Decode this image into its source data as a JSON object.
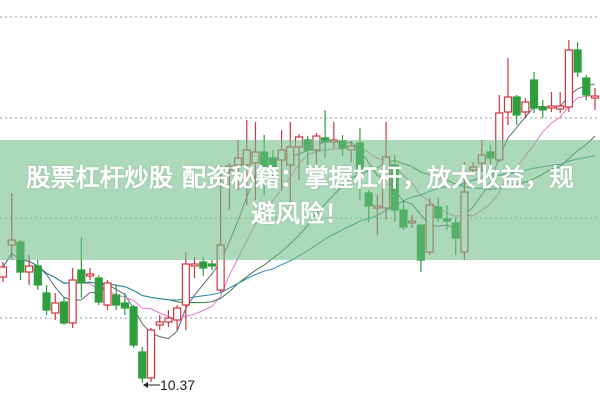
{
  "banner": {
    "title_line1": "股票杠杆炒股 配资秘籍：掌握杠杆，放大收益，规",
    "title_line2": "避风险！",
    "color": "#70be87"
  },
  "chart_data": {
    "type": "candlestick",
    "title": "",
    "xlabel": "",
    "ylabel": "",
    "ylim": [
      10.19,
      14.2
    ],
    "grid": true,
    "gridlines": [
      14.03,
      13.02,
      12.02,
      11.02
    ],
    "annotations": [
      {
        "text": "10.37",
        "target": "lowest low",
        "value": 10.37
      }
    ],
    "up_color": "#d0353f",
    "down_color": "#2e9e3e",
    "moving_averages": [
      {
        "window": 5,
        "color": "#5a6a7a"
      },
      {
        "window": 10,
        "color": "#e07ac8"
      },
      {
        "window": 20,
        "color": "#3d7a45"
      },
      {
        "window": 30,
        "color": "#2a8aa8"
      }
    ],
    "candles_ohlc": [
      [
        11.43,
        11.58,
        11.38,
        11.53
      ],
      [
        11.75,
        12.27,
        11.6,
        11.8
      ],
      [
        11.78,
        11.8,
        11.4,
        11.48
      ],
      [
        11.48,
        11.65,
        11.35,
        11.54
      ],
      [
        11.54,
        11.6,
        11.3,
        11.35
      ],
      [
        11.27,
        11.35,
        11.05,
        11.1
      ],
      [
        11.07,
        11.27,
        11.0,
        11.17
      ],
      [
        11.18,
        11.22,
        10.95,
        10.97
      ],
      [
        10.97,
        11.52,
        10.92,
        11.4
      ],
      [
        11.5,
        11.83,
        11.22,
        11.37
      ],
      [
        11.44,
        11.52,
        11.4,
        11.46
      ],
      [
        11.42,
        11.45,
        11.15,
        11.18
      ],
      [
        11.15,
        11.4,
        11.1,
        11.37
      ],
      [
        11.25,
        11.35,
        11.1,
        11.15
      ],
      [
        11.17,
        11.27,
        11.05,
        11.12
      ],
      [
        11.13,
        11.15,
        10.72,
        10.75
      ],
      [
        10.68,
        10.73,
        10.37,
        10.42
      ],
      [
        10.42,
        10.92,
        10.38,
        10.9
      ],
      [
        10.95,
        11.05,
        10.9,
        10.98
      ],
      [
        10.98,
        11.1,
        10.93,
        11.02
      ],
      [
        11.0,
        11.15,
        10.9,
        11.12
      ],
      [
        11.15,
        11.68,
        10.9,
        11.56
      ],
      [
        11.54,
        11.63,
        11.42,
        11.56
      ],
      [
        11.58,
        11.63,
        11.44,
        11.52
      ],
      [
        11.56,
        11.6,
        11.5,
        11.54
      ],
      [
        11.3,
        12.55,
        11.28,
        11.75
      ],
      [
        12.5,
        12.57,
        12.1,
        12.54
      ],
      [
        12.55,
        12.8,
        12.3,
        12.62
      ],
      [
        12.55,
        13.0,
        12.15,
        12.7
      ],
      [
        12.57,
        12.98,
        12.2,
        12.68
      ],
      [
        12.68,
        12.85,
        12.25,
        12.52
      ],
      [
        12.62,
        12.7,
        12.35,
        12.52
      ],
      [
        12.6,
        12.9,
        12.3,
        12.7
      ],
      [
        12.55,
        12.98,
        12.15,
        12.73
      ],
      [
        12.73,
        12.86,
        12.4,
        12.83
      ],
      [
        12.8,
        12.84,
        12.55,
        12.7
      ],
      [
        12.7,
        12.87,
        12.52,
        12.84
      ],
      [
        12.82,
        13.1,
        12.62,
        12.78
      ],
      [
        12.78,
        12.98,
        12.72,
        12.8
      ],
      [
        12.79,
        12.85,
        12.64,
        12.72
      ],
      [
        12.7,
        12.79,
        12.58,
        12.74
      ],
      [
        12.77,
        12.92,
        12.2,
        12.47
      ],
      [
        12.27,
        12.3,
        11.98,
        12.14
      ],
      [
        12.12,
        12.25,
        11.85,
        12.14
      ],
      [
        12.12,
        12.98,
        12.0,
        12.63
      ],
      [
        12.55,
        12.65,
        11.98,
        12.1
      ],
      [
        12.1,
        12.2,
        11.9,
        11.93
      ],
      [
        11.97,
        12.05,
        11.92,
        11.99
      ],
      [
        11.95,
        11.95,
        11.48,
        11.6
      ],
      [
        11.68,
        12.22,
        11.65,
        12.15
      ],
      [
        12.13,
        12.22,
        11.98,
        12.02
      ],
      [
        12.01,
        12.15,
        11.9,
        11.99
      ],
      [
        11.97,
        12.02,
        11.65,
        11.82
      ],
      [
        11.68,
        12.58,
        11.6,
        12.28
      ],
      [
        12.5,
        12.58,
        12.45,
        12.53
      ],
      [
        12.57,
        12.8,
        12.48,
        12.65
      ],
      [
        12.68,
        12.75,
        12.55,
        12.62
      ],
      [
        12.6,
        13.25,
        12.58,
        13.07
      ],
      [
        13.08,
        13.62,
        12.95,
        13.23
      ],
      [
        13.23,
        13.25,
        12.95,
        13.05
      ],
      [
        13.08,
        13.22,
        13.02,
        13.18
      ],
      [
        13.4,
        13.48,
        13.07,
        13.12
      ],
      [
        13.13,
        13.2,
        13.02,
        13.1
      ],
      [
        13.12,
        13.28,
        13.08,
        13.14
      ],
      [
        13.11,
        13.28,
        13.07,
        13.14
      ],
      [
        13.13,
        13.8,
        13.08,
        13.7
      ],
      [
        13.7,
        13.78,
        13.43,
        13.48
      ],
      [
        13.42,
        13.45,
        13.2,
        13.25
      ],
      [
        13.22,
        13.32,
        13.1,
        13.24
      ]
    ]
  }
}
